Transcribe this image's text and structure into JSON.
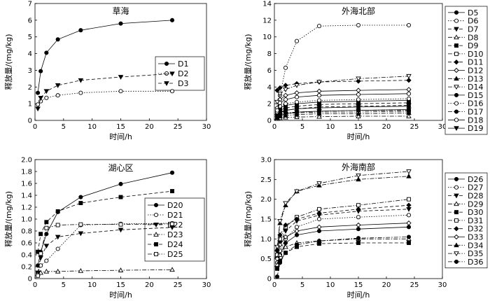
{
  "chart_data": [
    {
      "type": "line",
      "title": "草海",
      "xlabel": "时间/h",
      "ylabel": "释放量/(mg/kg)",
      "xlim": [
        0,
        30
      ],
      "ylim": [
        0,
        7
      ],
      "xticks": [
        "0",
        "5",
        "10",
        "15",
        "20",
        "25",
        "30"
      ],
      "yticks": [
        "0",
        "1",
        "2",
        "3",
        "4",
        "5",
        "6",
        "7"
      ],
      "legend": "right-inside",
      "x": [
        0.5,
        1,
        2,
        4,
        8,
        15,
        24
      ],
      "series": [
        {
          "name": "D1",
          "marker": "circle-filled",
          "dash": "solid",
          "values": [
            1.65,
            2.95,
            4.05,
            4.85,
            5.4,
            5.8,
            6.0
          ]
        },
        {
          "name": "D2",
          "marker": "circle-open",
          "dash": "dot",
          "values": [
            0.95,
            1.15,
            1.35,
            1.5,
            1.65,
            1.75,
            1.75
          ]
        },
        {
          "name": "D3",
          "marker": "tri-down-filled",
          "dash": "dash",
          "values": [
            0.7,
            1.35,
            1.75,
            2.1,
            2.4,
            2.6,
            2.8
          ]
        }
      ]
    },
    {
      "type": "line",
      "title": "外海北部",
      "xlabel": "时间/h",
      "ylabel": "释放量/(mg/kg)",
      "xlim": [
        0,
        30
      ],
      "ylim": [
        0,
        14
      ],
      "xticks": [
        "0",
        "5",
        "10",
        "15",
        "20",
        "25",
        "30"
      ],
      "yticks": [
        "0",
        "2",
        "4",
        "6",
        "8",
        "10",
        "12",
        "14"
      ],
      "legend": "right-outside",
      "x": [
        0.5,
        1,
        2,
        4,
        8,
        15,
        24
      ],
      "series": [
        {
          "name": "D5",
          "marker": "circle-filled",
          "dash": "solid",
          "values": [
            1.0,
            1.5,
            1.8,
            2.0,
            2.2,
            2.3,
            2.4
          ]
        },
        {
          "name": "D6",
          "marker": "circle-open",
          "dash": "dot",
          "values": [
            0.6,
            3.0,
            6.3,
            9.5,
            11.3,
            11.4,
            11.4
          ]
        },
        {
          "name": "D7",
          "marker": "tri-down-filled",
          "dash": "dash",
          "values": [
            0.5,
            0.9,
            1.2,
            1.4,
            1.6,
            1.7,
            1.8
          ]
        },
        {
          "name": "D8",
          "marker": "tri-up-open",
          "dash": "dashdot",
          "values": [
            0.2,
            0.3,
            0.35,
            0.4,
            0.45,
            0.5,
            0.5
          ]
        },
        {
          "name": "D9",
          "marker": "square-filled",
          "dash": "dash",
          "values": [
            0.8,
            1.2,
            1.5,
            1.7,
            1.9,
            2.0,
            2.1
          ]
        },
        {
          "name": "D10",
          "marker": "square-open",
          "dash": "dashdot",
          "values": [
            0.4,
            0.6,
            0.8,
            0.9,
            1.0,
            1.0,
            1.1
          ]
        },
        {
          "name": "D11",
          "marker": "diamond-filled",
          "dash": "dash",
          "values": [
            3.6,
            3.9,
            4.2,
            4.4,
            4.6,
            4.7,
            4.8
          ]
        },
        {
          "name": "D12",
          "marker": "diamond-open",
          "dash": "solid",
          "values": [
            1.5,
            2.5,
            3.0,
            3.3,
            3.5,
            3.6,
            3.7
          ]
        },
        {
          "name": "D13",
          "marker": "tri-up-filled",
          "dash": "dashdot",
          "values": [
            0.3,
            0.5,
            0.6,
            0.7,
            0.8,
            0.8,
            0.9
          ]
        },
        {
          "name": "D14",
          "marker": "tri-down-open",
          "dash": "dashdot",
          "values": [
            2.2,
            3.2,
            3.7,
            4.2,
            4.6,
            5.0,
            5.3
          ]
        },
        {
          "name": "D15",
          "marker": "circle-filled",
          "dash": "solid",
          "values": [
            0.6,
            1.0,
            1.2,
            1.4,
            1.5,
            1.6,
            1.7
          ]
        },
        {
          "name": "D16",
          "marker": "circle-open",
          "dash": "dot",
          "values": [
            1.0,
            1.7,
            2.0,
            2.2,
            2.4,
            2.5,
            2.6
          ]
        },
        {
          "name": "D17",
          "marker": "circle-filled",
          "dash": "dashdot",
          "values": [
            0.5,
            0.8,
            0.9,
            1.0,
            1.1,
            1.2,
            1.2
          ]
        },
        {
          "name": "D18",
          "marker": "circle-open",
          "dash": "solid",
          "values": [
            1.2,
            2.1,
            2.5,
            2.8,
            3.0,
            3.1,
            3.2
          ]
        },
        {
          "name": "D19",
          "marker": "tri-down-filled",
          "dash": "solid",
          "values": [
            0.3,
            0.6,
            0.8,
            1.0,
            1.1,
            1.2,
            1.3
          ]
        }
      ]
    },
    {
      "type": "line",
      "title": "湖心区",
      "xlabel": "时间/h",
      "ylabel": "释放量/(mg/kg)",
      "xlim": [
        0,
        30
      ],
      "ylim": [
        0,
        2.0
      ],
      "xticks": [
        "0",
        "5",
        "10",
        "15",
        "20",
        "25",
        "30"
      ],
      "yticks": [
        "0",
        "0.2",
        "0.4",
        "0.6",
        "0.8",
        "1.0",
        "1.2",
        "1.4",
        "1.6",
        "1.8",
        "2.0"
      ],
      "legend": "right-inside",
      "x": [
        0.5,
        1,
        2,
        4,
        8,
        15,
        24
      ],
      "series": [
        {
          "name": "D20",
          "marker": "circle-filled",
          "dash": "solid",
          "values": [
            0.22,
            0.45,
            0.75,
            1.12,
            1.37,
            1.59,
            1.78
          ]
        },
        {
          "name": "D21",
          "marker": "circle-open",
          "dash": "dot",
          "values": [
            0.1,
            0.22,
            0.3,
            0.5,
            0.9,
            0.92,
            0.93
          ]
        },
        {
          "name": "D22",
          "marker": "tri-down-filled",
          "dash": "dash",
          "values": [
            0.1,
            0.35,
            0.55,
            0.7,
            0.76,
            0.82,
            0.86
          ]
        },
        {
          "name": "D23",
          "marker": "tri-up-open",
          "dash": "dashdot",
          "values": [
            0.08,
            0.1,
            0.12,
            0.12,
            0.13,
            0.14,
            0.15
          ]
        },
        {
          "name": "D24",
          "marker": "square-filled",
          "dash": "dash",
          "values": [
            0.45,
            0.75,
            0.95,
            1.13,
            1.27,
            1.37,
            1.47
          ]
        },
        {
          "name": "D25",
          "marker": "square-open",
          "dash": "dashdot",
          "values": [
            0.05,
            0.42,
            0.85,
            0.9,
            0.91,
            0.91,
            0.92
          ]
        }
      ]
    },
    {
      "type": "line",
      "title": "外海南部",
      "xlabel": "时间/h",
      "ylabel": "释放量/(mg/kg)",
      "xlim": [
        0,
        30
      ],
      "ylim": [
        0,
        3.0
      ],
      "xticks": [
        "0",
        "5",
        "10",
        "15",
        "20",
        "25",
        "30"
      ],
      "yticks": [
        "0",
        "0.5",
        "1.0",
        "1.5",
        "2.0",
        "2.5",
        "3.0"
      ],
      "legend": "right-outside",
      "x": [
        0.5,
        1,
        2,
        4,
        8,
        15,
        24
      ],
      "series": [
        {
          "name": "D26",
          "marker": "circle-filled",
          "dash": "solid",
          "values": [
            0.3,
            0.6,
            0.9,
            1.1,
            1.2,
            1.25,
            1.3
          ]
        },
        {
          "name": "D27",
          "marker": "circle-open",
          "dash": "dot",
          "values": [
            0.4,
            0.7,
            1.0,
            1.3,
            1.5,
            1.55,
            1.6
          ]
        },
        {
          "name": "D28",
          "marker": "tri-down-filled",
          "dash": "dash",
          "values": [
            0.5,
            0.9,
            1.2,
            1.45,
            1.6,
            1.7,
            1.75
          ]
        },
        {
          "name": "D29",
          "marker": "tri-up-open",
          "dash": "dashdot",
          "values": [
            0.35,
            0.6,
            0.8,
            0.9,
            0.95,
            1.0,
            1.0
          ]
        },
        {
          "name": "D30",
          "marker": "square-filled",
          "dash": "dash",
          "values": [
            0.25,
            0.45,
            0.65,
            0.8,
            0.88,
            0.9,
            0.9
          ]
        },
        {
          "name": "D31",
          "marker": "square-open",
          "dash": "dashdot",
          "values": [
            0.6,
            1.0,
            1.3,
            1.55,
            1.75,
            1.85,
            2.0
          ]
        },
        {
          "name": "D32",
          "marker": "diamond-filled",
          "dash": "dash",
          "values": [
            0.7,
            1.1,
            1.35,
            1.5,
            1.65,
            1.75,
            1.85
          ]
        },
        {
          "name": "D33",
          "marker": "diamond-open",
          "dash": "solid",
          "values": [
            0.5,
            0.85,
            1.05,
            1.2,
            1.3,
            1.35,
            1.4
          ]
        },
        {
          "name": "D34",
          "marker": "tri-up-filled",
          "dash": "dashdot",
          "values": [
            0.75,
            1.4,
            1.85,
            2.2,
            2.35,
            2.5,
            2.58
          ]
        },
        {
          "name": "D35",
          "marker": "tri-down-open",
          "dash": "dashdot",
          "values": [
            0.8,
            1.45,
            1.9,
            2.2,
            2.4,
            2.6,
            2.7
          ]
        },
        {
          "name": "D36",
          "marker": "circle-filled",
          "dash": "dashdot",
          "values": [
            0.05,
            0.4,
            0.65,
            0.85,
            0.95,
            1.02,
            1.05
          ]
        }
      ]
    }
  ]
}
